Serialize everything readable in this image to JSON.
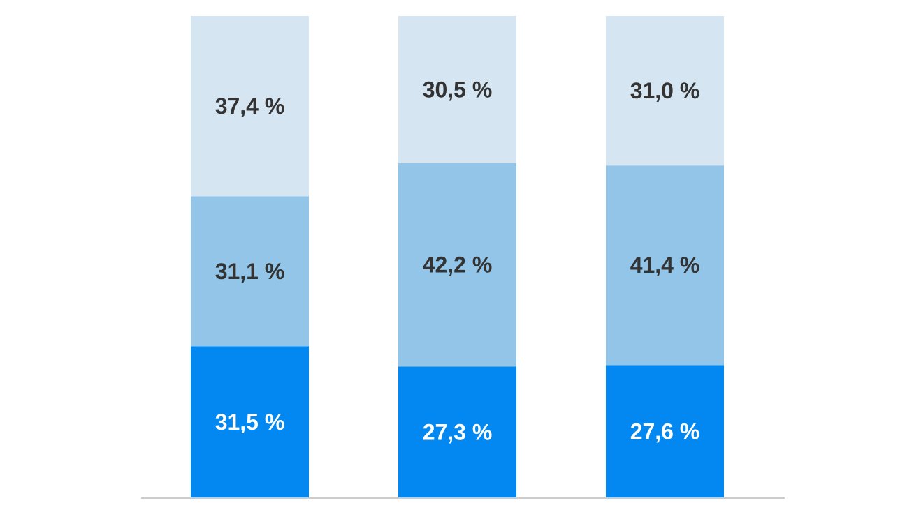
{
  "chart_data": {
    "type": "bar",
    "stacked": true,
    "normalized": true,
    "categories": [
      "",
      "",
      ""
    ],
    "series": [
      {
        "values": [
          31.5,
          27.3,
          27.6
        ],
        "labels": [
          "31,5 %",
          "27,3 %",
          "27,6 %"
        ],
        "color": "#0288f0",
        "label_color": "#ffffff"
      },
      {
        "values": [
          31.1,
          42.2,
          41.4
        ],
        "labels": [
          "31,1 %",
          "42,2 %",
          "41,4 %"
        ],
        "color": "#93c5e8",
        "label_color": "#333333"
      },
      {
        "values": [
          37.4,
          30.5,
          31.0
        ],
        "labels": [
          "37,4 %",
          "30,5 %",
          "31,0 %"
        ],
        "color": "#d5e6f2",
        "label_color": "#333333"
      }
    ],
    "ylim": [
      0,
      100
    ],
    "grid": false,
    "legend": "none",
    "baseline_color": "#cccccc"
  }
}
